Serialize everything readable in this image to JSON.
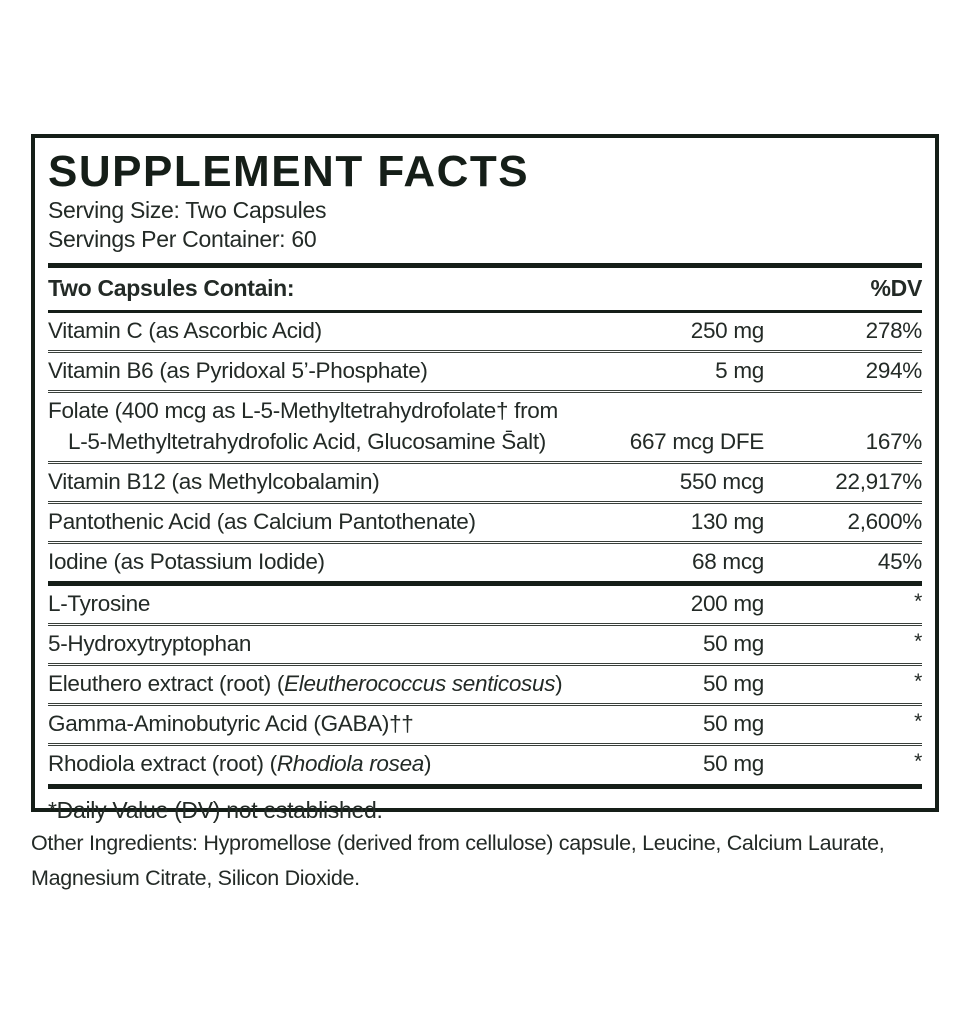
{
  "colors": {
    "ink": "#232a26",
    "ink-dark": "#151e18",
    "hair": "#3a403b",
    "bg": "#ffffff"
  },
  "label": {
    "title": "SUPPLEMENT FACTS",
    "serving_size": "Serving Size: Two Capsules",
    "servings_per_container": "Servings Per Container: 60",
    "columns": {
      "name": "Two Capsules Contain:",
      "dv": "%DV"
    },
    "rows": [
      {
        "sep": "none",
        "name": [
          {
            "t": "Vitamin C (as Ascorbic Acid)"
          }
        ],
        "amount": "250 mg",
        "dv": "278%"
      },
      {
        "sep": "hairline",
        "name": [
          {
            "t": "Vitamin B6 (as Pyridoxal 5’-Phosphate)"
          }
        ],
        "amount": "5 mg",
        "dv": "294%"
      },
      {
        "sep": "hairline",
        "name": [
          {
            "t": "Folate (400 mcg as L-5-Methyltetrahydrofolate† from"
          }
        ],
        "name2": [
          {
            "t": "L-5-Methyltetrahydrofolic Acid, Glucosamine S̄alt)"
          }
        ],
        "amount": "667 mcg DFE",
        "dv": "167%"
      },
      {
        "sep": "hairline",
        "name": [
          {
            "t": "Vitamin B12 (as Methylcobalamin)"
          }
        ],
        "amount": "550 mcg",
        "dv": "22,917%"
      },
      {
        "sep": "hairline",
        "name": [
          {
            "t": "Pantothenic Acid (as Calcium Pantothenate)"
          }
        ],
        "amount": "130 mg",
        "dv": "2,600%"
      },
      {
        "sep": "hairline",
        "name": [
          {
            "t": "Iodine (as Potassium Iodide)"
          }
        ],
        "amount": "68 mcg",
        "dv": "45%"
      },
      {
        "sep": "thick",
        "name": [
          {
            "t": "L-Tyrosine"
          }
        ],
        "amount": "200 mg",
        "dv": "*"
      },
      {
        "sep": "hairline",
        "name": [
          {
            "t": "5-Hydroxytryptophan"
          }
        ],
        "amount": "50 mg",
        "dv": "*"
      },
      {
        "sep": "hairline",
        "name": [
          {
            "t": "Eleuthero extract (root) ("
          },
          {
            "t": "Eleutherococcus senticosus",
            "i": true
          },
          {
            "t": ")"
          }
        ],
        "amount": "50 mg",
        "dv": "*"
      },
      {
        "sep": "hairline",
        "name": [
          {
            "t": "Gamma-Aminobutyric Acid (GABA)††"
          }
        ],
        "amount": "50 mg",
        "dv": "*"
      },
      {
        "sep": "hairline",
        "name": [
          {
            "t": "Rhodiola extract (root) ("
          },
          {
            "t": "Rhodiola rosea",
            "i": true
          },
          {
            "t": ")"
          }
        ],
        "amount": "50 mg",
        "dv": "*"
      }
    ],
    "footnote": "*Daily Value (DV) not established.",
    "other_ingredients_lines": [
      "Other Ingredients: Hypromellose (derived from cellulose) capsule, Leucine, Calcium Laurate,",
      "Magnesium Citrate, Silicon Dioxide."
    ]
  }
}
